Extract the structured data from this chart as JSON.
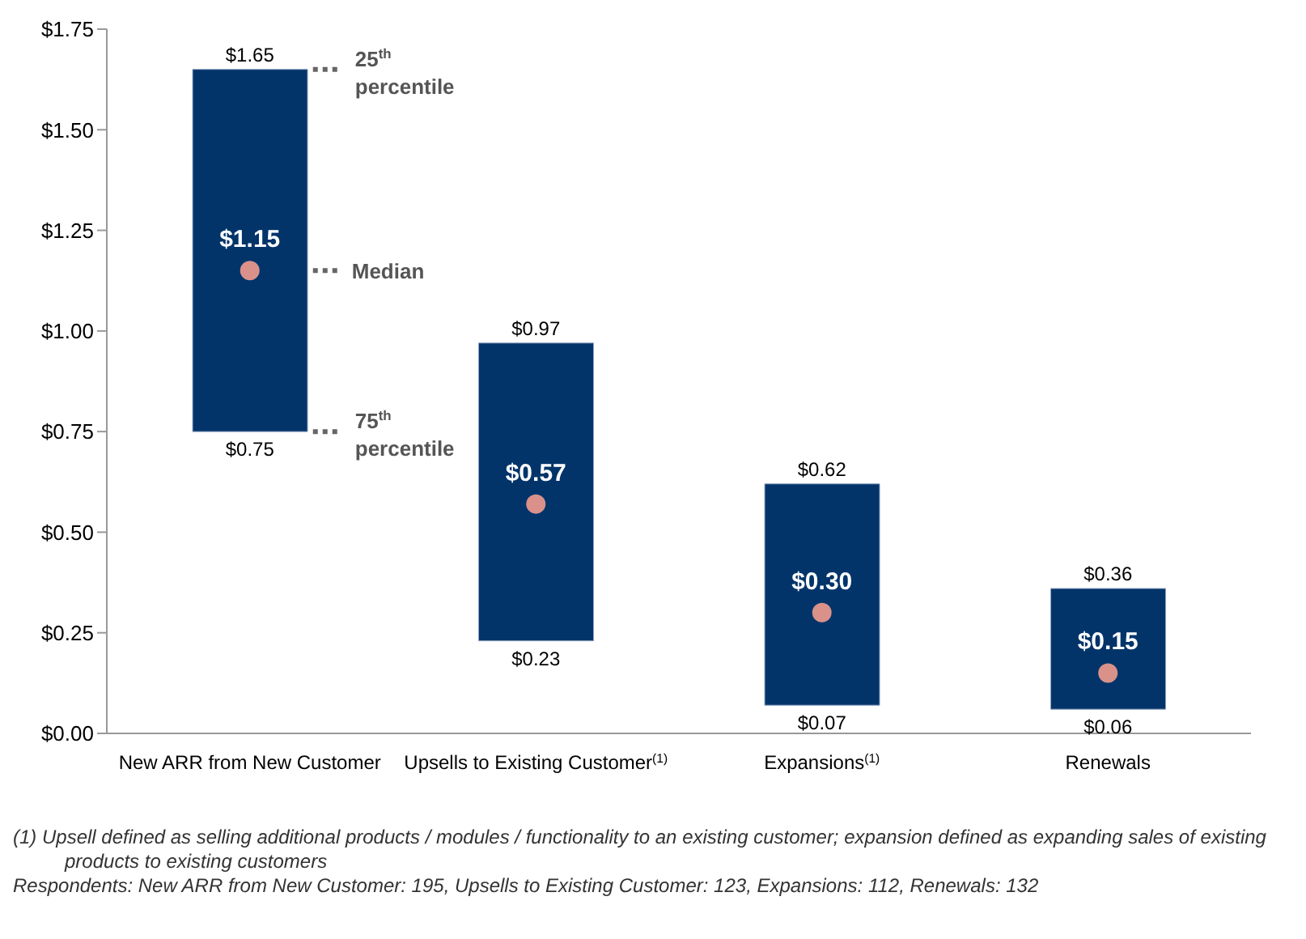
{
  "chart_data": {
    "type": "bar",
    "categories": [
      "New ARR from New Customer",
      "Upsells to Existing Customer$^{(1)}$",
      "Expansions$^{(1)}$",
      "Renewals"
    ],
    "series": [
      {
        "color": "#02346a",
        "base": [
          0.75,
          0.23,
          0.07,
          0.06
        ],
        "values": [
          0.9,
          0.74,
          0.55,
          0.3
        ]
      },
      {
        "type": "scatter",
        "color": "#d9918a",
        "x": [
          "New ARR from New Customer",
          "Upsells to Existing Customer$^{(1)}$",
          "Expansions$^{(1)}$",
          "Renewals"
        ],
        "values": [
          1.15,
          0.57,
          0.3,
          0.15
        ],
        "value_labels": [
          "$1.15",
          "$0.57",
          "$0.30",
          "$0.15"
        ]
      }
    ],
    "ylim": [
      0,
      1.75
    ],
    "yticks": [
      {
        "value": 0,
        "label": "$0.00"
      },
      {
        "value": 0.25,
        "label": "$0.25"
      },
      {
        "value": 0.5,
        "label": "$0.50"
      },
      {
        "value": 0.75,
        "label": "$0.75"
      },
      {
        "value": 1,
        "label": "$1.00"
      },
      {
        "value": 1.25,
        "label": "$1.25"
      },
      {
        "value": 1.5,
        "label": "$1.50"
      },
      {
        "value": 1.75,
        "label": "$1.75"
      }
    ],
    "grid": false,
    "legend": false,
    "marker": "circle",
    "annotations": [
      {
        "text": "$1.65",
        "x": "New ARR from New Customer",
        "y": 1.65
      },
      {
        "text": "$0.75",
        "x": "New ARR from New Customer",
        "y": 0.75
      },
      {
        "text": "$0.97",
        "x": "Upsells to Existing Customer$^{(1)}$",
        "y": 0.97
      },
      {
        "text": "$0.23",
        "x": "Upsells to Existing Customer$^{(1)}$",
        "y": 0.23
      },
      {
        "text": "$0.62",
        "x": "Expansions$^{(1)}$",
        "y": 0.62
      },
      {
        "text": "$0.07",
        "x": "Expansions$^{(1)}$",
        "y": 0.07
      },
      {
        "text": "$0.36",
        "x": "Renewals",
        "y": 0.36
      },
      {
        "text": "$0.06",
        "x": "Renewals",
        "y": 0.06
      },
      "25$^{th}$ percentile",
      "Median",
      "75$^{th}$ percentile",
      "(1)  Upsell defined as selling additional products / modules / functionality to an existing customer; expansion defined as expanding sales of existing products to existing customers",
      "Respondents: New ARR from New Customer: 195, Upsells to Existing Customer: 123, Expansions: 112, Renewals: 132"
    ]
  }
}
